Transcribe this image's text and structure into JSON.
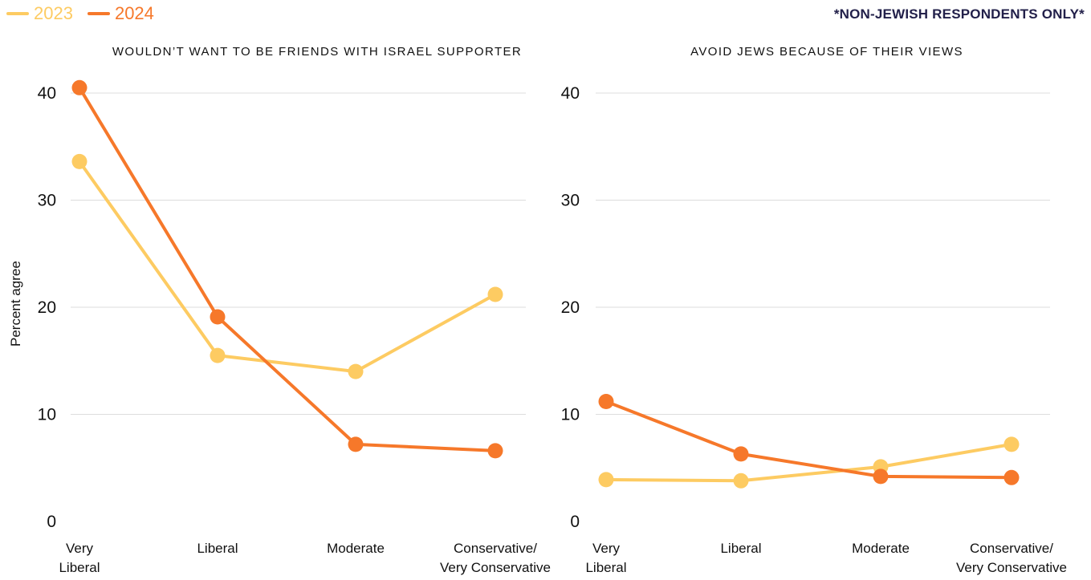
{
  "legend": {
    "items": [
      {
        "label": "2023",
        "color": "#FDCB62"
      },
      {
        "label": "2024",
        "color": "#F6782A"
      }
    ]
  },
  "note": "*NON-JEWISH RESPONDENTS ONLY*",
  "y_axis_label": "Percent agree",
  "chart_data": [
    {
      "type": "line",
      "title": "WOULDN’T WANT TO BE FRIENDS WITH ISRAEL SUPPORTER",
      "ylabel": "Percent agree",
      "categories": [
        [
          "Very",
          "Liberal"
        ],
        [
          "Liberal"
        ],
        [
          "Moderate"
        ],
        [
          "Conservative/",
          "Very Conservative"
        ]
      ],
      "y_ticks": [
        "0",
        "10",
        "20",
        "30",
        "40"
      ],
      "ylim": [
        0,
        40
      ],
      "grid": true,
      "series": [
        {
          "name": "2023",
          "color": "#FDCB62",
          "values": [
            33.6,
            15.5,
            14.0,
            21.2
          ]
        },
        {
          "name": "2024",
          "color": "#F6782A",
          "values": [
            40.5,
            19.1,
            7.2,
            6.6
          ]
        }
      ]
    },
    {
      "type": "line",
      "title": "AVOID JEWS BECAUSE OF THEIR VIEWS",
      "ylabel": "",
      "categories": [
        [
          "Very",
          "Liberal"
        ],
        [
          "Liberal"
        ],
        [
          "Moderate"
        ],
        [
          "Conservative/",
          "Very Conservative"
        ]
      ],
      "y_ticks": [
        "0",
        "10",
        "20",
        "30",
        "40"
      ],
      "ylim": [
        0,
        40
      ],
      "grid": true,
      "series": [
        {
          "name": "2023",
          "color": "#FDCB62",
          "values": [
            3.9,
            3.8,
            5.1,
            7.2
          ]
        },
        {
          "name": "2024",
          "color": "#F6782A",
          "values": [
            11.2,
            6.3,
            4.2,
            4.1
          ]
        }
      ]
    }
  ]
}
